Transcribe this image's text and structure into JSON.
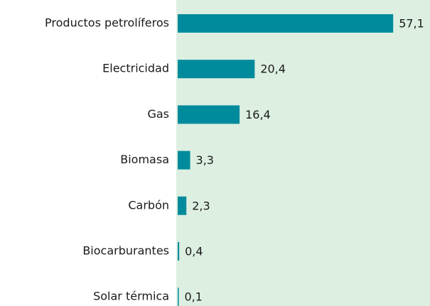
{
  "chart_data": {
    "type": "bar",
    "orientation": "horizontal",
    "categories": [
      "Productos petrolíferos",
      "Electricidad",
      "Gas",
      "Biomasa",
      "Carbón",
      "Biocarburantes",
      "Solar térmica"
    ],
    "values": [
      57.1,
      20.4,
      16.4,
      3.3,
      2.3,
      0.4,
      0.1
    ],
    "value_labels": [
      "57,1",
      "20,4",
      "16,4",
      "3,3",
      "2,3",
      "0,4",
      "0,1"
    ],
    "color": "#008b9c"
  }
}
